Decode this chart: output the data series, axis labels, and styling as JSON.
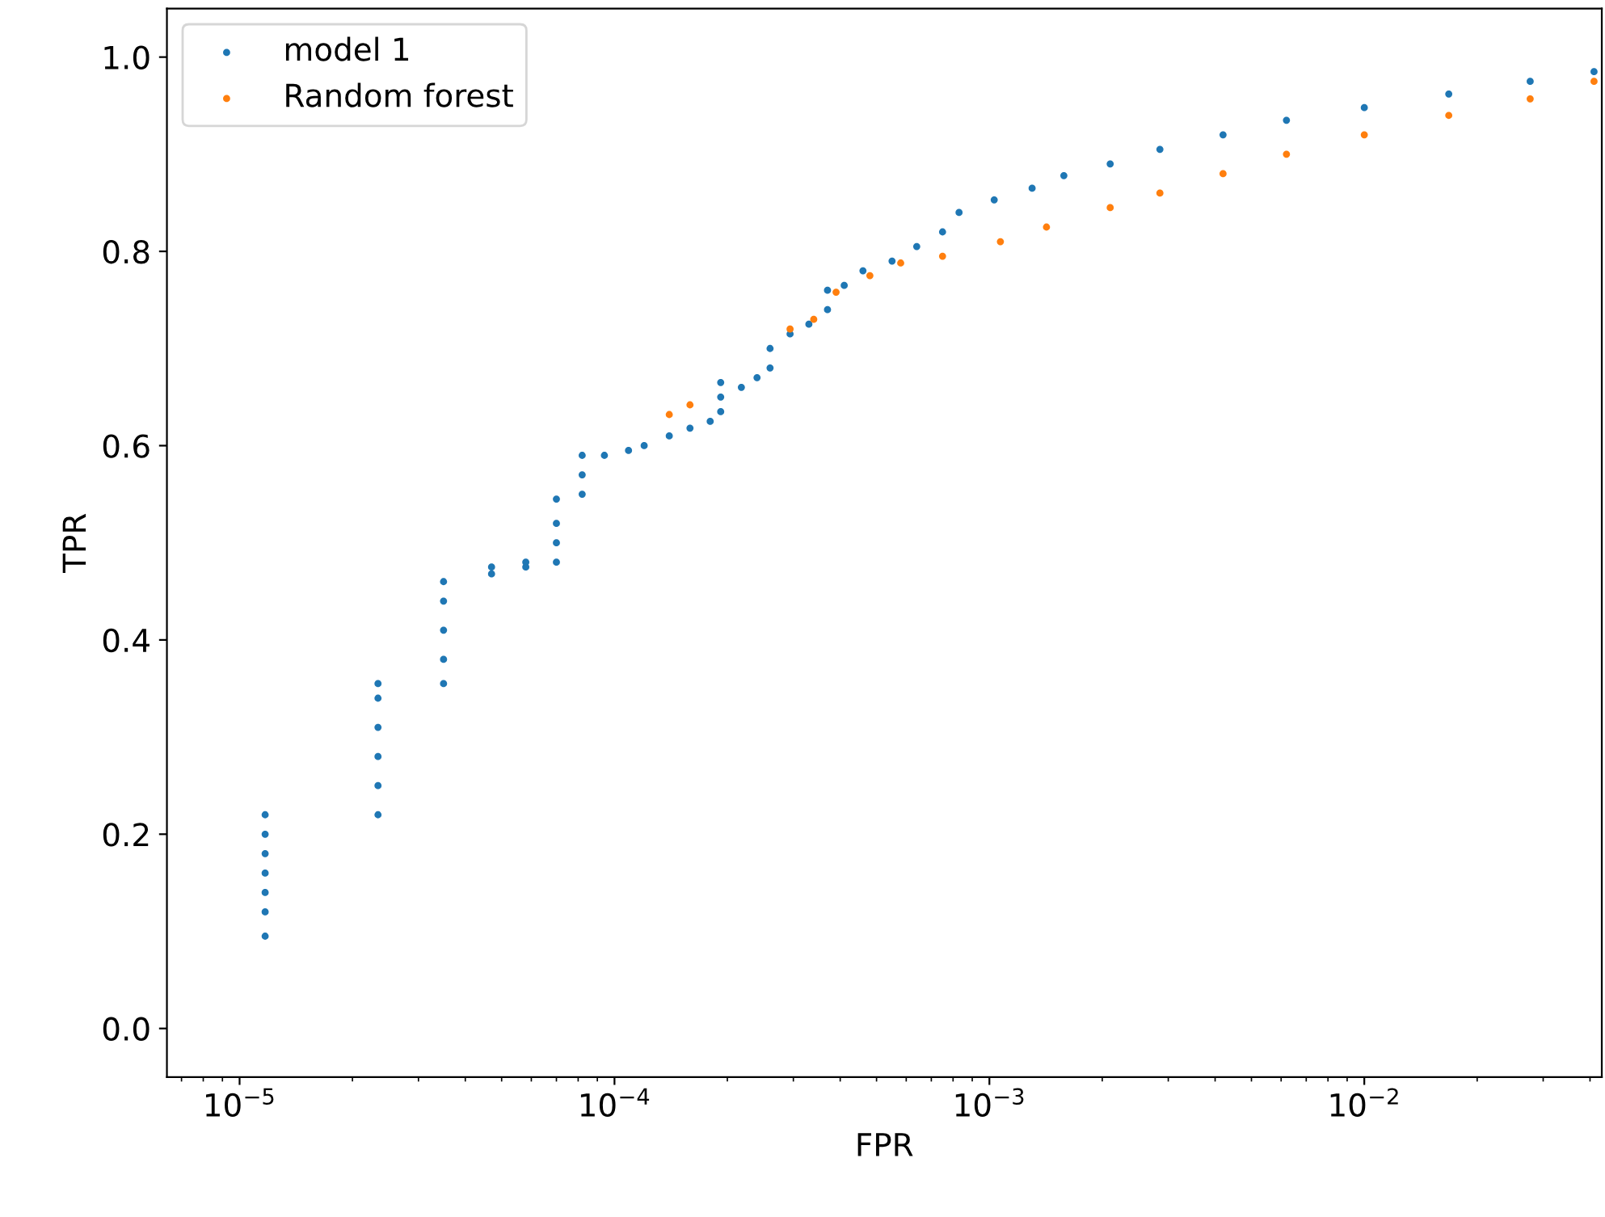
{
  "chart_data": {
    "type": "scatter",
    "xlabel": "FPR",
    "ylabel": "TPR",
    "log": "x",
    "xlim": [
      6.4e-06,
      0.043
    ],
    "ylim": [
      -0.05,
      1.05
    ],
    "xticks": [
      {
        "value": 1e-05,
        "label": "10$^{−5}$"
      },
      {
        "value": 0.0001,
        "label": "10$^{−4}$"
      },
      {
        "value": 0.001,
        "label": "10$^{−3}$"
      },
      {
        "value": 0.01,
        "label": "10$^{−2}$"
      }
    ],
    "yticks": [
      {
        "value": 0,
        "label": "0.0"
      },
      {
        "value": 0.2,
        "label": "0.2"
      },
      {
        "value": 0.4,
        "label": "0.4"
      },
      {
        "value": 0.6,
        "label": "0.6"
      },
      {
        "value": 0.8,
        "label": "0.8"
      },
      {
        "value": 1,
        "label": "1.0"
      }
    ],
    "grid": false,
    "legend": "top left",
    "marker": "circle",
    "series": [
      {
        "name": "model 1",
        "color": "#1f77b4",
        "x": [
          1.17e-05,
          1.17e-05,
          1.17e-05,
          1.17e-05,
          1.17e-05,
          1.17e-05,
          1.17e-05,
          2.34e-05,
          2.34e-05,
          2.34e-05,
          2.34e-05,
          2.34e-05,
          2.34e-05,
          3.5e-05,
          3.5e-05,
          3.5e-05,
          3.5e-05,
          3.5e-05,
          4.7e-05,
          4.7e-05,
          5.8e-05,
          5.8e-05,
          7e-05,
          7e-05,
          7e-05,
          7e-05,
          8.2e-05,
          8.2e-05,
          8.2e-05,
          9.4e-05,
          0.000109,
          0.00012,
          0.00014,
          0.000159,
          0.00018,
          0.000192,
          0.000192,
          0.000192,
          0.000218,
          0.00024,
          0.00026,
          0.00026,
          0.000294,
          0.00033,
          0.00037,
          0.00037,
          0.00041,
          0.00046,
          0.00055,
          0.00064,
          0.00075,
          0.00083,
          0.00103,
          0.0013,
          0.00158,
          0.0021,
          0.00285,
          0.0042,
          0.0062,
          0.01,
          0.0168,
          0.0277,
          0.041
        ],
        "values": [
          0.095,
          0.12,
          0.14,
          0.16,
          0.18,
          0.2,
          0.22,
          0.22,
          0.25,
          0.28,
          0.31,
          0.34,
          0.355,
          0.355,
          0.38,
          0.41,
          0.44,
          0.46,
          0.468,
          0.475,
          0.475,
          0.48,
          0.48,
          0.5,
          0.52,
          0.545,
          0.55,
          0.57,
          0.59,
          0.59,
          0.595,
          0.6,
          0.61,
          0.618,
          0.625,
          0.635,
          0.65,
          0.665,
          0.66,
          0.67,
          0.68,
          0.7,
          0.715,
          0.725,
          0.74,
          0.76,
          0.765,
          0.78,
          0.79,
          0.805,
          0.82,
          0.84,
          0.853,
          0.865,
          0.878,
          0.89,
          0.905,
          0.92,
          0.935,
          0.948,
          0.962,
          0.975,
          0.985
        ]
      },
      {
        "name": "Random forest",
        "color": "#ff7f0e",
        "x": [
          0.00014,
          0.000159,
          0.000294,
          0.00034,
          0.00039,
          0.00048,
          0.00058,
          0.00075,
          0.00107,
          0.00142,
          0.0021,
          0.00285,
          0.0042,
          0.0062,
          0.01,
          0.0168,
          0.0277,
          0.041
        ],
        "values": [
          0.632,
          0.642,
          0.72,
          0.73,
          0.758,
          0.775,
          0.788,
          0.795,
          0.81,
          0.825,
          0.845,
          0.86,
          0.88,
          0.9,
          0.92,
          0.94,
          0.957,
          0.975
        ]
      }
    ]
  }
}
